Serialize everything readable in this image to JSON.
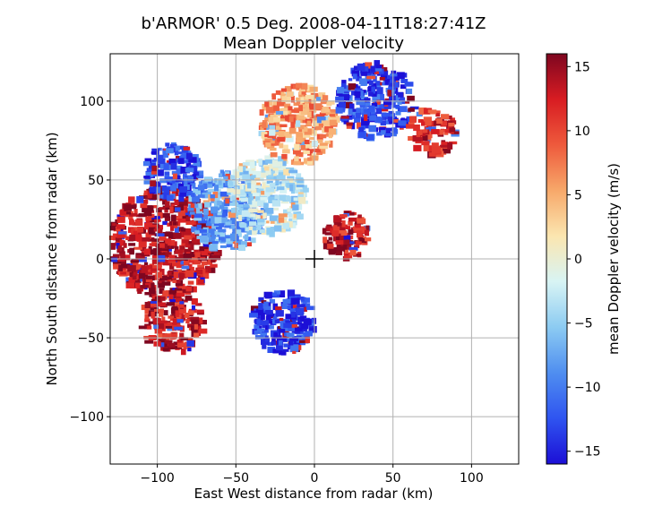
{
  "chart_data": {
    "type": "heatmap",
    "title_line1": "b'ARMOR' 0.5 Deg. 2008-04-11T18:27:41Z",
    "title_line2": "Mean Doppler velocity",
    "xlabel": "East West distance from radar (km)",
    "ylabel": "North South distance from radar (km)",
    "xlim": [
      -130,
      130
    ],
    "ylim": [
      -130,
      130
    ],
    "xticks": [
      -100,
      -50,
      0,
      50,
      100
    ],
    "yticks": [
      -100,
      -50,
      0,
      50,
      100
    ],
    "grid": true,
    "radar_marker": [
      0,
      0
    ],
    "colorbar": {
      "label": "mean Doppler velocity (m/s)",
      "range": [
        -16,
        16
      ],
      "ticks": [
        -15,
        -10,
        -5,
        0,
        5,
        10,
        15
      ],
      "colormap": [
        "#1c0fd6",
        "#2f54f0",
        "#4f8ef0",
        "#8ccbf2",
        "#d8f4f4",
        "#fbe6b0",
        "#f7a86a",
        "#ee5a3c",
        "#d81c22",
        "#7e0620"
      ]
    },
    "echo_regions": [
      {
        "region": "west",
        "center": [
          -95,
          10
        ],
        "radius": 35,
        "velocity": 14
      },
      {
        "region": "west-south",
        "center": [
          -90,
          -40
        ],
        "radius": 20,
        "velocity": 13
      },
      {
        "region": "west-north",
        "center": [
          -90,
          55
        ],
        "radius": 18,
        "velocity": -13
      },
      {
        "region": "central-west",
        "center": [
          -55,
          30
        ],
        "radius": 25,
        "velocity": -8
      },
      {
        "region": "central",
        "center": [
          -30,
          40
        ],
        "radius": 25,
        "velocity": -3
      },
      {
        "region": "north-center",
        "center": [
          -10,
          85
        ],
        "radius": 25,
        "velocity": 6
      },
      {
        "region": "north-east",
        "center": [
          40,
          100
        ],
        "radius": 25,
        "velocity": -13
      },
      {
        "region": "south",
        "center": [
          -20,
          -40
        ],
        "radius": 20,
        "velocity": -14
      },
      {
        "region": "near-radar",
        "center": [
          20,
          15
        ],
        "radius": 15,
        "velocity": 13
      },
      {
        "region": "north-east-band",
        "center": [
          75,
          80
        ],
        "radius": 15,
        "velocity": 12
      }
    ]
  }
}
